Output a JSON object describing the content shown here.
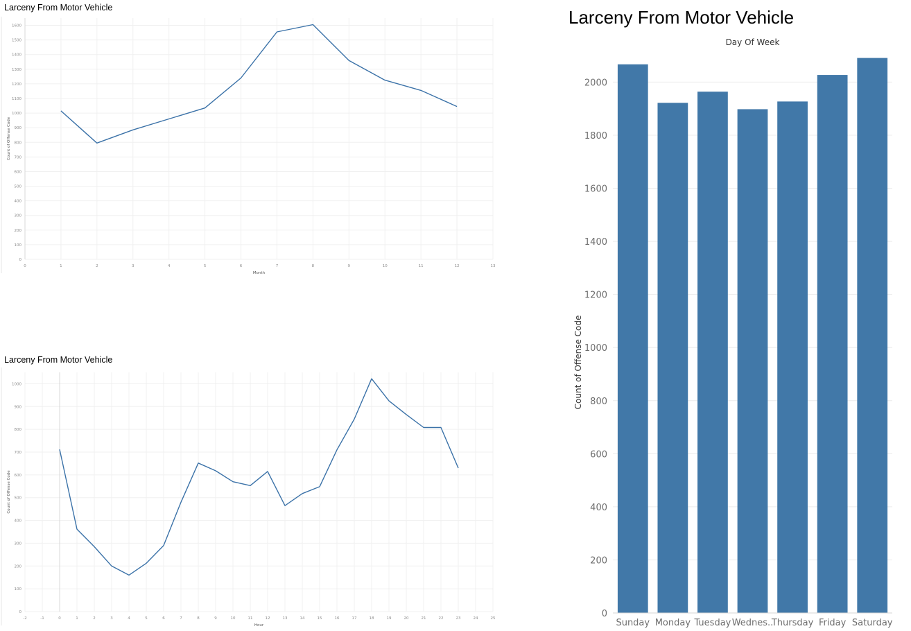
{
  "chart_data": [
    {
      "type": "line",
      "title": "Larceny From Motor Vehicle",
      "xlabel": "Month",
      "ylabel": "Count of Offense Code",
      "x": [
        1,
        2,
        3,
        4,
        5,
        6,
        7,
        8,
        9,
        10,
        11,
        12
      ],
      "series": [
        {
          "values": [
            1015,
            795,
            885,
            960,
            1035,
            1240,
            1555,
            1605,
            1360,
            1225,
            1155,
            1045
          ]
        }
      ],
      "xlim": [
        0,
        13
      ],
      "ylim": [
        0,
        1650
      ],
      "xticks": [
        0,
        1,
        2,
        3,
        4,
        5,
        6,
        7,
        8,
        9,
        10,
        11,
        12,
        13
      ],
      "yticks": [
        0,
        100,
        200,
        300,
        400,
        500,
        600,
        700,
        800,
        900,
        1000,
        1100,
        1200,
        1300,
        1400,
        1500,
        1600
      ],
      "grid": true,
      "color": "#3b72a8"
    },
    {
      "type": "line",
      "title": "Larceny From Motor Vehicle",
      "xlabel": "Hour",
      "ylabel": "Count of Offense Code",
      "x": [
        0,
        1,
        2,
        3,
        4,
        5,
        6,
        7,
        8,
        9,
        10,
        11,
        12,
        13,
        14,
        15,
        16,
        17,
        18,
        19,
        20,
        21,
        22,
        23
      ],
      "series": [
        {
          "values": [
            712,
            362,
            285,
            200,
            160,
            212,
            290,
            480,
            652,
            618,
            570,
            553,
            615,
            465,
            518,
            548,
            710,
            845,
            1022,
            925,
            865,
            808,
            808,
            630
          ]
        }
      ],
      "xlim": [
        -2,
        25
      ],
      "ylim": [
        0,
        1050
      ],
      "xticks": [
        -2,
        -1,
        0,
        1,
        2,
        3,
        4,
        5,
        6,
        7,
        8,
        9,
        10,
        11,
        12,
        13,
        14,
        15,
        16,
        17,
        18,
        19,
        20,
        21,
        22,
        23,
        24,
        25
      ],
      "yticks": [
        0,
        100,
        200,
        300,
        400,
        500,
        600,
        700,
        800,
        900,
        1000
      ],
      "grid": true,
      "color": "#3b72a8"
    },
    {
      "type": "bar",
      "title": "Larceny From Motor Vehicle",
      "subtitle": "Day Of Week",
      "xlabel": "",
      "ylabel": "Count of Offense Code",
      "categories": [
        "Sunday",
        "Monday",
        "Tuesday",
        "Wednes..",
        "Thursday",
        "Friday",
        "Saturday"
      ],
      "values": [
        2067,
        1922,
        1964,
        1898,
        1927,
        2027,
        2091
      ],
      "ylim": [
        0,
        2150
      ],
      "yticks": [
        0,
        200,
        400,
        600,
        800,
        1000,
        1200,
        1400,
        1600,
        1800,
        2000
      ],
      "grid": true,
      "color": "#4178a8"
    }
  ]
}
